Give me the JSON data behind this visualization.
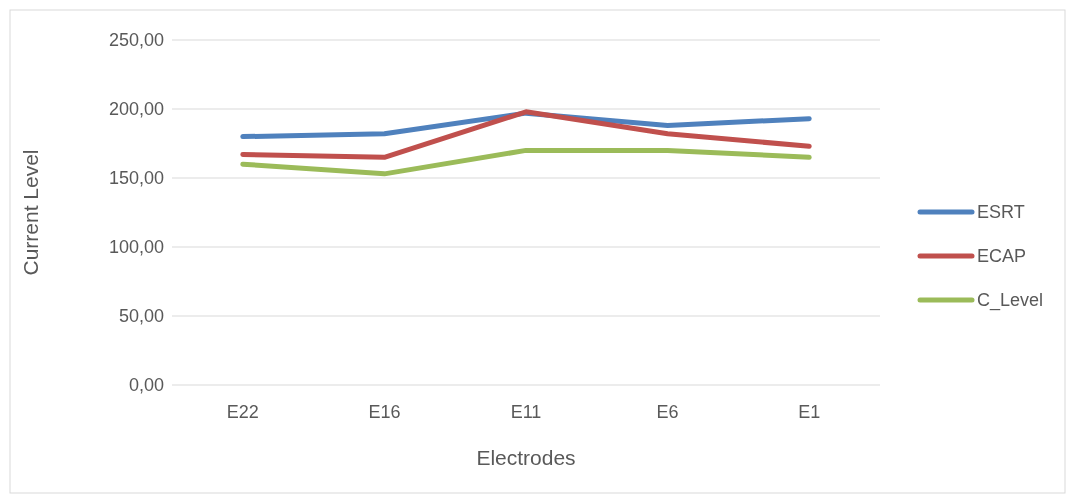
{
  "chart_data": {
    "type": "line",
    "xlabel": "Electrodes",
    "ylabel": "Current Level",
    "categories": [
      "E22",
      "E16",
      "E11",
      "E6",
      "E1"
    ],
    "series": [
      {
        "name": "ESRT",
        "color": "#4f81bd",
        "values": [
          180,
          182,
          197,
          188,
          193
        ]
      },
      {
        "name": "ECAP",
        "color": "#c0504d",
        "values": [
          167,
          165,
          198,
          182,
          173
        ]
      },
      {
        "name": "C_Level",
        "color": "#9bbb59",
        "values": [
          160,
          153,
          170,
          170,
          165
        ]
      }
    ],
    "ylim": [
      0,
      250
    ],
    "yticks": [
      {
        "value": 0,
        "label": "0,00"
      },
      {
        "value": 50,
        "label": "50,00"
      },
      {
        "value": 100,
        "label": "100,00"
      },
      {
        "value": 150,
        "label": "150,00"
      },
      {
        "value": 200,
        "label": "200,00"
      },
      {
        "value": 250,
        "label": "250,00"
      }
    ],
    "grid": "y",
    "legend": "right",
    "marker": "none",
    "line_style": "solid"
  }
}
